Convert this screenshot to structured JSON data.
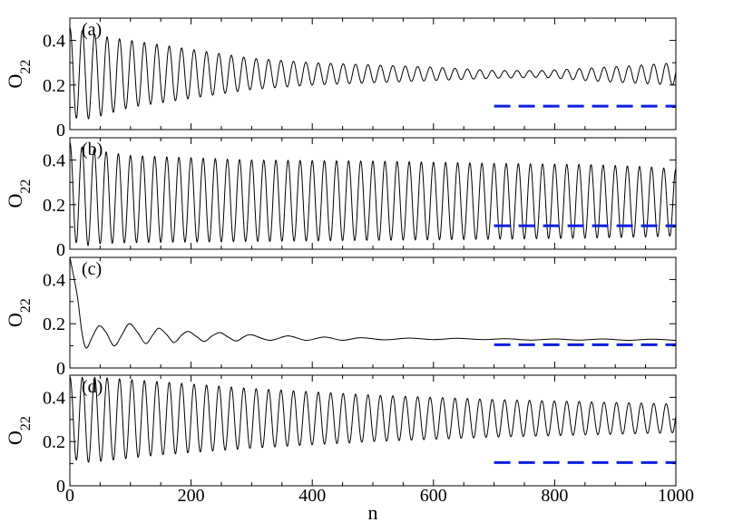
{
  "chart_data": {
    "type": "line",
    "layout": "4 vertically stacked panels sharing the x axis",
    "xlabel": "n",
    "x_ticks": [
      "0",
      "200",
      "400",
      "600",
      "800",
      "1000"
    ],
    "xlim": [
      0,
      1000
    ],
    "colors": {
      "curve": "#000000",
      "reference": "#0b1ee0"
    },
    "panels": [
      {
        "label": "(a)",
        "ylabel": "O22",
        "ylim": [
          0,
          0.5
        ],
        "y_ticks": [
          "0",
          "0.2",
          "0.4"
        ],
        "series": [
          {
            "style": "solid",
            "color": "#000000",
            "start": 0.45,
            "period": 20.5,
            "x_range": [
              0,
              1000
            ],
            "envelope": [
              [
                0,
                0.46,
                0.03
              ],
              [
                50,
                0.42,
                0.06
              ],
              [
                100,
                0.4,
                0.1
              ],
              [
                200,
                0.36,
                0.14
              ],
              [
                300,
                0.32,
                0.18
              ],
              [
                400,
                0.3,
                0.2
              ],
              [
                500,
                0.29,
                0.21
              ],
              [
                600,
                0.28,
                0.22
              ],
              [
                700,
                0.265,
                0.23
              ],
              [
                780,
                0.265,
                0.235
              ],
              [
                850,
                0.275,
                0.22
              ],
              [
                920,
                0.285,
                0.21
              ],
              [
                1000,
                0.3,
                0.2
              ]
            ]
          },
          {
            "style": "dashed",
            "color": "#0b1ee0",
            "x": [
              700,
              1000
            ],
            "y": [
              0.105,
              0.105
            ]
          }
        ]
      },
      {
        "label": "(b)",
        "ylabel": "O22",
        "ylim": [
          0,
          0.5
        ],
        "y_ticks": [
          "0",
          "0.2",
          "0.4"
        ],
        "series": [
          {
            "style": "solid",
            "color": "#000000",
            "start": 0.5,
            "period": 20.0,
            "x_range": [
              0,
              1000
            ],
            "envelope": [
              [
                0,
                0.47,
                0.005
              ],
              [
                50,
                0.44,
                0.025
              ],
              [
                100,
                0.42,
                0.03
              ],
              [
                300,
                0.4,
                0.035
              ],
              [
                500,
                0.395,
                0.04
              ],
              [
                700,
                0.385,
                0.045
              ],
              [
                850,
                0.38,
                0.05
              ],
              [
                950,
                0.37,
                0.055
              ],
              [
                1000,
                0.36,
                0.06
              ]
            ]
          },
          {
            "style": "dashed",
            "color": "#0b1ee0",
            "x": [
              700,
              1000
            ],
            "y": [
              0.105,
              0.105
            ]
          }
        ]
      },
      {
        "label": "(c)",
        "ylabel": "O22",
        "ylim": [
          0,
          0.5
        ],
        "y_ticks": [
          "0",
          "0.2",
          "0.4"
        ],
        "series": [
          {
            "style": "solid",
            "color": "#000000",
            "x_range": [
              0,
              1000
            ],
            "points": [
              [
                0,
                0.5
              ],
              [
                12,
                0.33
              ],
              [
                20,
                0.16
              ],
              [
                27,
                0.09
              ],
              [
                37,
                0.14
              ],
              [
                48,
                0.19
              ],
              [
                60,
                0.16
              ],
              [
                73,
                0.1
              ],
              [
                86,
                0.15
              ],
              [
                98,
                0.2
              ],
              [
                112,
                0.16
              ],
              [
                125,
                0.11
              ],
              [
                137,
                0.15
              ],
              [
                147,
                0.18
              ],
              [
                160,
                0.15
              ],
              [
                172,
                0.115
              ],
              [
                185,
                0.15
              ],
              [
                196,
                0.165
              ],
              [
                210,
                0.14
              ],
              [
                222,
                0.12
              ],
              [
                235,
                0.145
              ],
              [
                248,
                0.16
              ],
              [
                262,
                0.138
              ],
              [
                275,
                0.122
              ],
              [
                288,
                0.142
              ],
              [
                300,
                0.15
              ],
              [
                330,
                0.125
              ],
              [
                360,
                0.145
              ],
              [
                390,
                0.125
              ],
              [
                420,
                0.14
              ],
              [
                450,
                0.125
              ],
              [
                480,
                0.137
              ],
              [
                520,
                0.127
              ],
              [
                560,
                0.135
              ],
              [
                600,
                0.128
              ],
              [
                640,
                0.134
              ],
              [
                680,
                0.128
              ],
              [
                720,
                0.132
              ],
              [
                760,
                0.126
              ],
              [
                800,
                0.131
              ],
              [
                840,
                0.126
              ],
              [
                880,
                0.131
              ],
              [
                920,
                0.125
              ],
              [
                960,
                0.13
              ],
              [
                1000,
                0.125
              ]
            ]
          },
          {
            "style": "dashed",
            "color": "#0b1ee0",
            "x": [
              700,
              1000
            ],
            "y": [
              0.105,
              0.105
            ]
          }
        ]
      },
      {
        "label": "(d)",
        "ylabel": "O22",
        "ylim": [
          0,
          0.5
        ],
        "y_ticks": [
          "0",
          "0.2",
          "0.4"
        ],
        "series": [
          {
            "style": "solid",
            "color": "#000000",
            "start": 0.5,
            "period": 20.5,
            "x_range": [
              0,
              1000
            ],
            "envelope": [
              [
                0,
                0.49,
                0.1
              ],
              [
                50,
                0.49,
                0.11
              ],
              [
                150,
                0.47,
                0.14
              ],
              [
                300,
                0.44,
                0.17
              ],
              [
                500,
                0.41,
                0.2
              ],
              [
                700,
                0.39,
                0.22
              ],
              [
                850,
                0.38,
                0.23
              ],
              [
                1000,
                0.37,
                0.24
              ]
            ]
          },
          {
            "style": "dashed",
            "color": "#0b1ee0",
            "x": [
              700,
              1000
            ],
            "y": [
              0.105,
              0.105
            ]
          }
        ]
      }
    ]
  }
}
